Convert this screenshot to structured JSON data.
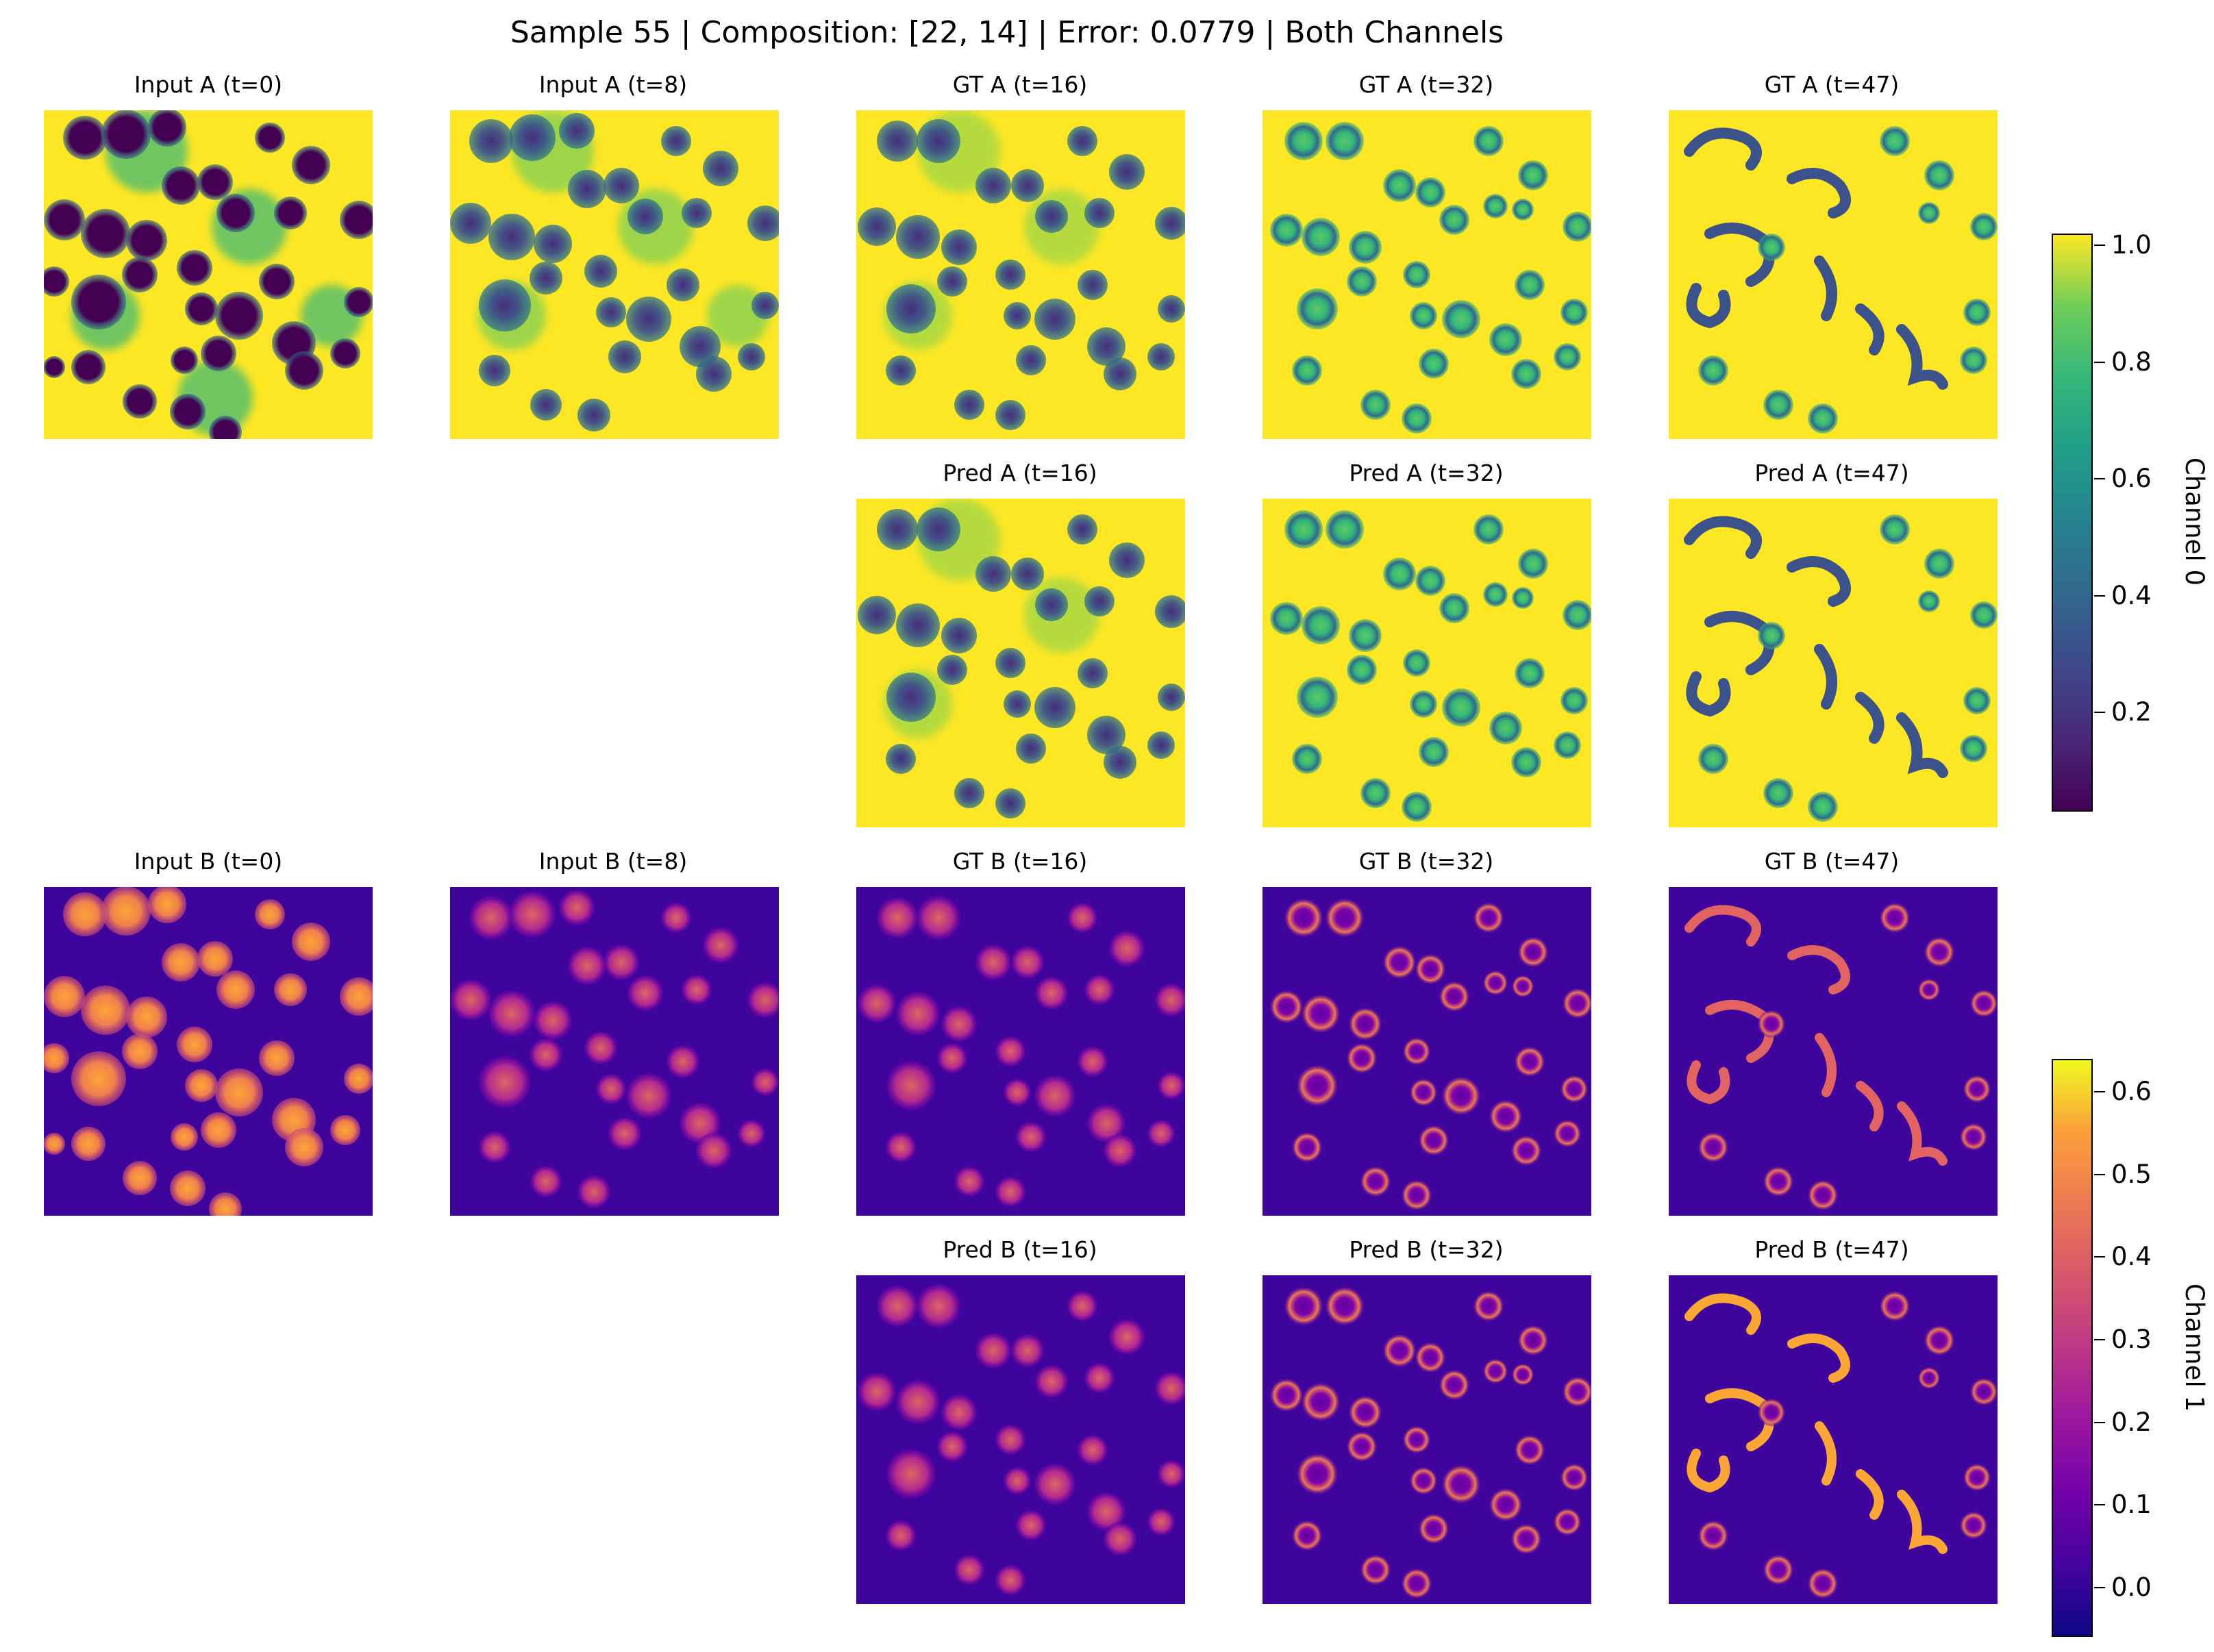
{
  "figure": {
    "title": "Sample 55 | Composition: [22, 14] | Error: 0.0779 | Both Channels"
  },
  "channel_a": {
    "colormap": "viridis",
    "colorbar_label": "Channel 0",
    "colorbar_ticks": [
      "0.2",
      "0.4",
      "0.6",
      "0.8",
      "1.0"
    ],
    "colorbar_range": [
      0.03,
      1.02
    ],
    "inputs": [
      {
        "title": "Input A (t=0)"
      },
      {
        "title": "Input A (t=8)"
      }
    ],
    "ground_truth": [
      {
        "title": "GT A (t=16)"
      },
      {
        "title": "GT A (t=32)"
      },
      {
        "title": "GT A (t=47)"
      }
    ],
    "predictions": [
      {
        "title": "Pred A (t=16)"
      },
      {
        "title": "Pred A (t=32)"
      },
      {
        "title": "Pred A (t=47)"
      }
    ]
  },
  "channel_b": {
    "colormap": "plasma",
    "colorbar_label": "Channel 1",
    "colorbar_ticks": [
      "0.0",
      "0.1",
      "0.2",
      "0.3",
      "0.4",
      "0.5",
      "0.6"
    ],
    "colorbar_range": [
      -0.06,
      0.64
    ],
    "inputs": [
      {
        "title": "Input B (t=0)"
      },
      {
        "title": "Input B (t=8)"
      }
    ],
    "ground_truth": [
      {
        "title": "GT B (t=16)"
      },
      {
        "title": "GT B (t=32)"
      },
      {
        "title": "GT B (t=47)"
      }
    ],
    "predictions": [
      {
        "title": "Pred B (t=16)"
      },
      {
        "title": "Pred B (t=32)"
      },
      {
        "title": "Pred B (t=47)"
      }
    ]
  }
}
